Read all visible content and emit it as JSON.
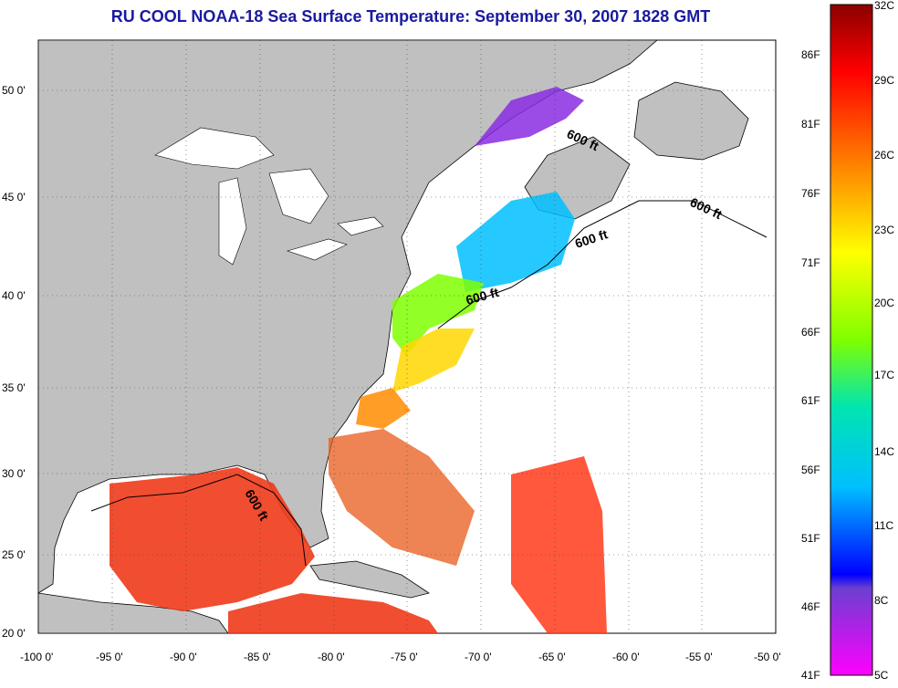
{
  "title": "RU COOL  NOAA-18  Sea Surface Temperature:  September 30, 2007 1828 GMT",
  "map": {
    "x_ticks": [
      "-100 0'",
      "-95 0'",
      "-90 0'",
      "-85 0'",
      "-80 0'",
      "-75 0'",
      "-70 0'",
      "-65 0'",
      "-60 0'",
      "-55 0'",
      "-50 0'"
    ],
    "y_ticks": [
      "50 0'",
      "45 0'",
      "40 0'",
      "35 0'",
      "30 0'",
      "25 0'",
      "20 0'"
    ],
    "depth_labels": [
      "600 ft",
      "600 ft",
      "600 ft",
      "600 ft",
      "600 ft"
    ],
    "land_color": "#c0c0c0",
    "no_data_color": "#ffffff"
  },
  "colorbar": {
    "celsius": [
      "32C",
      "29C",
      "26C",
      "23C",
      "20C",
      "17C",
      "14C",
      "11C",
      "8C",
      "5C"
    ],
    "fahrenheit": [
      "86F",
      "81F",
      "76F",
      "71F",
      "66F",
      "61F",
      "56F",
      "51F",
      "46F",
      "41F"
    ],
    "colors": [
      "#8b0000",
      "#ff0000",
      "#ff8c00",
      "#ffff00",
      "#7fff00",
      "#00e5b0",
      "#00bfff",
      "#0000ff",
      "#8a2be2",
      "#ff00ff"
    ]
  }
}
